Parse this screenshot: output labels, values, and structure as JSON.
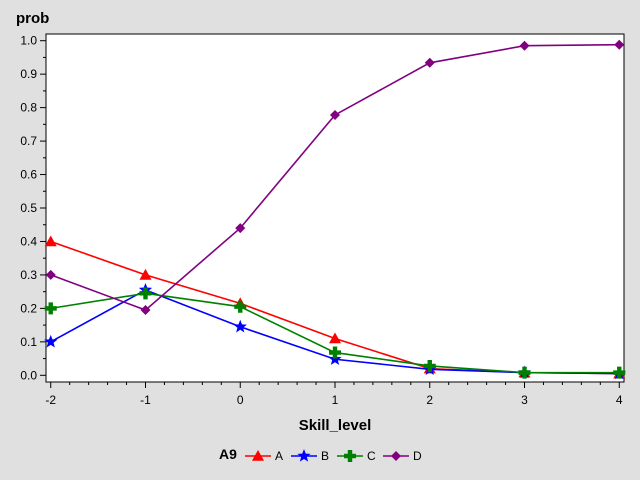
{
  "chart_data": {
    "type": "line",
    "ylabel": "prob",
    "xlabel": "Skill_level",
    "x": [
      -2,
      -1,
      0,
      1,
      2,
      3,
      4
    ],
    "xlim": [
      -2.05,
      4.05
    ],
    "ylim": [
      -0.02,
      1.02
    ],
    "x_ticks": [
      "-2",
      "-1",
      "0",
      "1",
      "2",
      "3",
      "4"
    ],
    "y_ticks": [
      "0.0",
      "0.1",
      "0.2",
      "0.3",
      "0.4",
      "0.5",
      "0.6",
      "0.7",
      "0.8",
      "0.9",
      "1.0"
    ],
    "grid": false,
    "legend_title": "A9",
    "legend_position": "bottom",
    "series": [
      {
        "name": "A",
        "color": "#ff0000",
        "marker": "triangle",
        "values": [
          0.4,
          0.3,
          0.215,
          0.11,
          0.02,
          0.008,
          0.005
        ]
      },
      {
        "name": "B",
        "color": "#0000ff",
        "marker": "star",
        "values": [
          0.1,
          0.255,
          0.145,
          0.048,
          0.018,
          0.008,
          0.005
        ]
      },
      {
        "name": "C",
        "color": "#008000",
        "marker": "plus",
        "values": [
          0.2,
          0.245,
          0.205,
          0.068,
          0.028,
          0.008,
          0.008
        ]
      },
      {
        "name": "D",
        "color": "#800080",
        "marker": "diamond",
        "values": [
          0.3,
          0.195,
          0.44,
          0.778,
          0.934,
          0.985,
          0.988
        ]
      }
    ]
  }
}
